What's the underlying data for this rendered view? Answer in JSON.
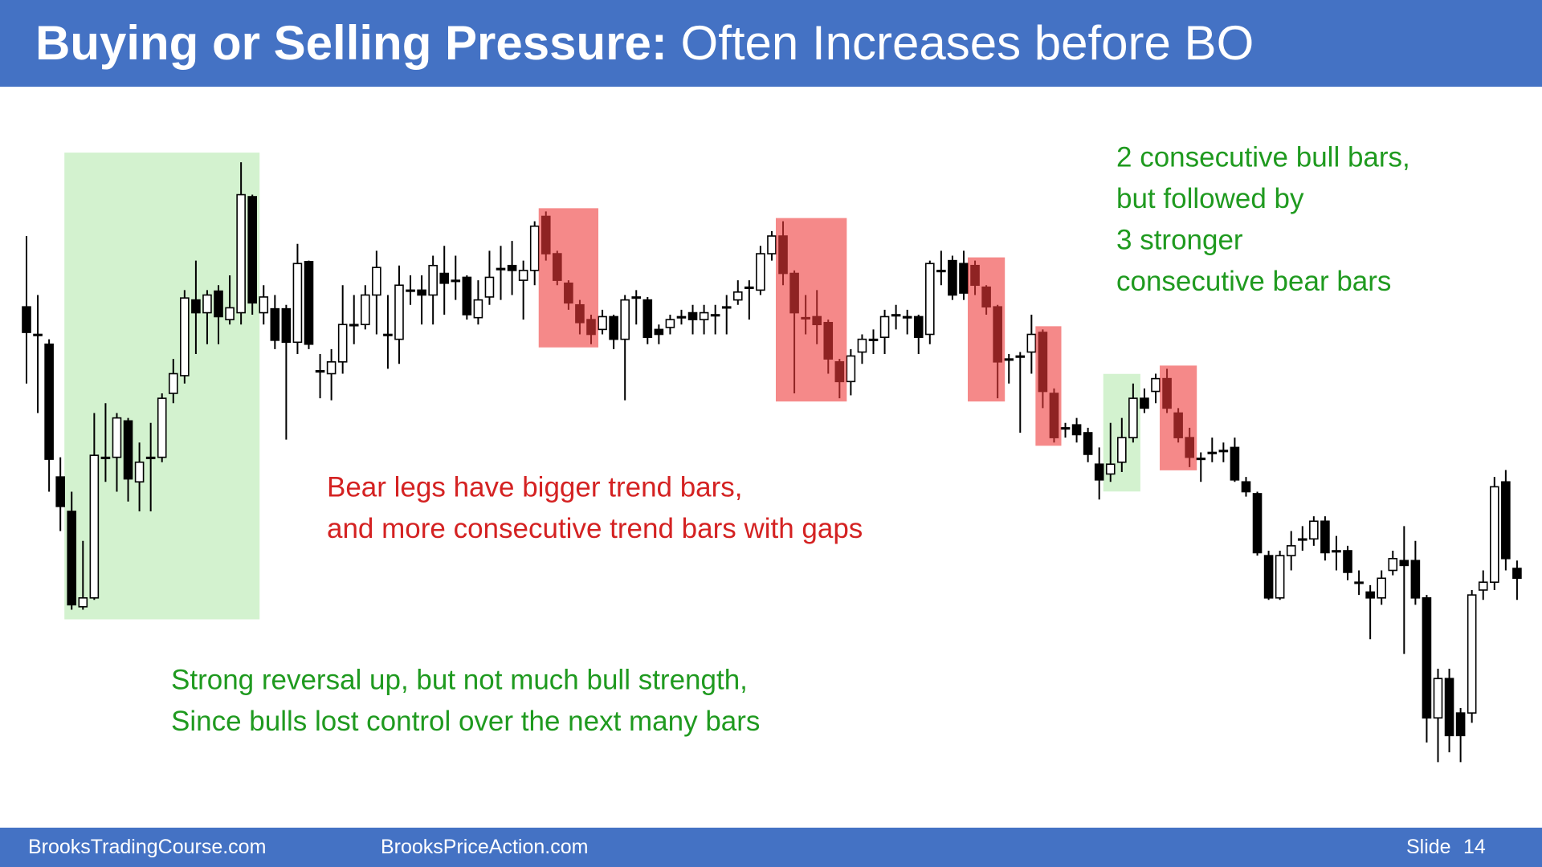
{
  "header": {
    "title": "Buying or Selling Pressure:",
    "subtitle": "Often Increases before BO"
  },
  "chart_data": {
    "type": "candlestick",
    "ylim": [
      0,
      70
    ],
    "bull_color": "#ffffff",
    "bear_color": "#000000",
    "open": [
      48.8,
      46,
      45,
      31.5,
      28,
      18.3,
      19.2,
      33.5,
      33.5,
      37.2,
      31,
      33.5,
      33.5,
      40,
      41.8,
      49.5,
      48.2,
      50.4,
      47.5,
      48.2,
      60,
      48.2,
      48.6,
      48.6,
      45.2,
      53.4,
      42.3,
      42,
      43.2,
      47,
      47,
      50,
      46,
      45.5,
      50.5,
      50.5,
      50,
      52.2,
      51.5,
      51.8,
      47.7,
      49.8,
      52.7,
      53,
      51.5,
      52.5,
      58,
      54.2,
      51.2,
      49,
      47.5,
      46.5,
      47.8,
      45.5,
      49.8,
      49.5,
      46.5,
      46.7,
      47.8,
      48.2,
      47.5,
      48,
      48.8,
      49.5,
      50.8,
      50.5,
      54.2,
      56,
      52.2,
      47.7,
      47.8,
      47.2,
      43.2,
      41.2,
      44.2,
      45.5,
      45.7,
      48,
      47.8,
      47.8,
      46,
      52.5,
      53.5,
      53.2,
      53,
      50.8,
      48.8,
      43.5,
      43.8,
      44.2,
      46.2,
      40,
      36.5,
      36.8,
      36,
      32.8,
      31.8,
      33,
      35.5,
      39.5,
      40.2,
      41.5,
      38,
      35.5,
      33.4,
      34,
      34.2,
      34.5,
      31,
      29.8,
      23.5,
      19.2,
      23.5,
      25.2,
      25.2,
      27,
      24,
      24,
      20.8,
      19.8,
      19.2,
      22,
      23,
      23,
      19.2,
      7,
      11,
      7.5,
      7.5,
      20,
      20.8,
      31,
      22.2
    ],
    "high": [
      56,
      50,
      45.5,
      33.5,
      30,
      25,
      38,
      39,
      38,
      37.5,
      35,
      37,
      40,
      43.5,
      50.5,
      53.5,
      50.5,
      51,
      52,
      63.5,
      60.2,
      51,
      50,
      49,
      55.2,
      53.5,
      44,
      44.5,
      51,
      50,
      51,
      54.5,
      50,
      53,
      52,
      52,
      54,
      55,
      54,
      52,
      51.5,
      54.5,
      55,
      55.5,
      53.5,
      57.5,
      58.5,
      54.5,
      51.5,
      49.5,
      48,
      48.5,
      48,
      50,
      50.5,
      49.8,
      47,
      48,
      48.5,
      49,
      49,
      49,
      50,
      51.5,
      51.5,
      55,
      56.5,
      57.5,
      52.5,
      50,
      50.5,
      47.5,
      43.5,
      44.5,
      46,
      46.5,
      48.5,
      49,
      48.5,
      48,
      53.5,
      54.5,
      54,
      54.5,
      53.5,
      51,
      49,
      44,
      44.2,
      48,
      46.5,
      40.5,
      37,
      37.5,
      36.5,
      34.5,
      37,
      37.5,
      41,
      40.5,
      42,
      42.5,
      38.5,
      36.5,
      34,
      35.5,
      35,
      35.5,
      31.5,
      30,
      24,
      24,
      26,
      26.5,
      27.5,
      27.5,
      25.5,
      24.5,
      22,
      20.5,
      22,
      24,
      26.5,
      25,
      19.5,
      12,
      12,
      8,
      20,
      22,
      31.5,
      32.2,
      23
    ],
    "low": [
      41,
      38,
      30,
      26,
      18,
      18,
      19,
      31,
      30,
      29,
      28,
      28,
      33,
      39,
      41,
      44,
      45,
      45,
      47,
      47,
      48,
      47,
      44.5,
      35.3,
      44,
      44.5,
      39.5,
      39.3,
      42,
      45,
      46.5,
      46,
      42.5,
      43,
      49,
      47,
      47,
      48,
      49.5,
      47.5,
      47,
      49,
      49.5,
      50,
      47.5,
      51,
      53.5,
      51,
      48.5,
      46,
      45,
      46,
      44.5,
      39.3,
      47,
      45,
      45,
      46,
      47,
      46,
      46,
      46,
      46,
      49,
      47.5,
      50,
      53.5,
      51,
      40,
      46,
      45,
      42,
      39.5,
      39.8,
      43,
      44,
      44,
      46.5,
      46,
      44,
      45,
      51,
      49.5,
      49.5,
      50,
      48,
      39.5,
      41,
      36,
      42,
      38.5,
      35,
      35.5,
      35,
      33,
      29.2,
      31,
      32,
      35,
      38,
      39,
      38,
      35,
      32.5,
      31,
      33,
      33,
      31,
      29.5,
      23.5,
      19,
      19,
      22,
      24,
      24.5,
      23,
      22,
      21,
      19.5,
      15,
      18.5,
      21.5,
      13.5,
      18.5,
      4.5,
      2.5,
      3.5,
      2.5,
      6.5,
      19,
      20,
      22,
      19
    ],
    "close": [
      46.2,
      46,
      33.3,
      28.5,
      18.5,
      19.2,
      33.7,
      33.5,
      37.5,
      31.3,
      33,
      33.5,
      39.5,
      42,
      49.7,
      48.2,
      50,
      47.8,
      48.7,
      60.2,
      49.2,
      49.8,
      45.4,
      45.2,
      53.2,
      45,
      42.3,
      43.2,
      47,
      47,
      50,
      52.8,
      46,
      51,
      50.5,
      50,
      53,
      51.2,
      51.5,
      48,
      49.5,
      51.8,
      52.7,
      52.5,
      52.5,
      57,
      54.2,
      51.5,
      49.2,
      47.2,
      46,
      47.8,
      45.5,
      49.5,
      49.8,
      45.7,
      46,
      47.5,
      47.8,
      47.5,
      48.2,
      48,
      48.8,
      50.3,
      50.8,
      54.2,
      56,
      52.2,
      48.2,
      47.7,
      47,
      43.5,
      41.2,
      43.8,
      45.5,
      45.5,
      47.8,
      48,
      47.8,
      45.7,
      53.2,
      52.5,
      50,
      50.2,
      51,
      48.8,
      43.2,
      43.5,
      43.8,
      46,
      40.2,
      35.5,
      36.5,
      35.8,
      33.8,
      31.2,
      32.8,
      35.5,
      39.5,
      38.5,
      41.5,
      38.5,
      35.5,
      33.5,
      33.4,
      34,
      34.2,
      31.2,
      30,
      23.8,
      19.2,
      23.5,
      24.5,
      25.2,
      27,
      23.8,
      24,
      21.8,
      20.8,
      19.2,
      21.2,
      23.2,
      22.5,
      19.2,
      7,
      11,
      5.2,
      5.2,
      19.5,
      20.8,
      30.5,
      23.2,
      21.2
    ],
    "highlights": [
      {
        "from": 4,
        "to": 20,
        "color": "#d3f2cf",
        "on_top": false
      },
      {
        "from": 46,
        "to": 50,
        "color": "#ee3b3b",
        "on_top": true
      },
      {
        "from": 67,
        "to": 72,
        "color": "#ee3b3b",
        "on_top": true
      },
      {
        "from": 84,
        "to": 86,
        "color": "#ee3b3b",
        "on_top": true
      },
      {
        "from": 90,
        "to": 91,
        "color": "#ee3b3b",
        "on_top": true
      },
      {
        "from": 96,
        "to": 98,
        "color": "#d3f2cf",
        "on_top": false
      },
      {
        "from": 101,
        "to": 103,
        "color": "#ee3b3b",
        "on_top": true
      }
    ],
    "annotations": [
      {
        "color": "#1f9a1f",
        "lines": [
          "2 consecutive bull bars,",
          "but followed by",
          "3 stronger",
          "consecutive bear bars"
        ]
      },
      {
        "color": "#d42222",
        "lines": [
          "Bear legs have bigger trend bars,",
          "and more consecutive trend bars with gaps"
        ]
      },
      {
        "color": "#1f9a1f",
        "lines": [
          "Strong reversal up, but not much bull strength,",
          "Since bulls lost control over the next many bars"
        ]
      }
    ]
  },
  "footer": {
    "left": "BrooksTradingCourse.com",
    "center": "BrooksPriceAction.com",
    "slide_label": "Slide",
    "slide_number": "14"
  }
}
